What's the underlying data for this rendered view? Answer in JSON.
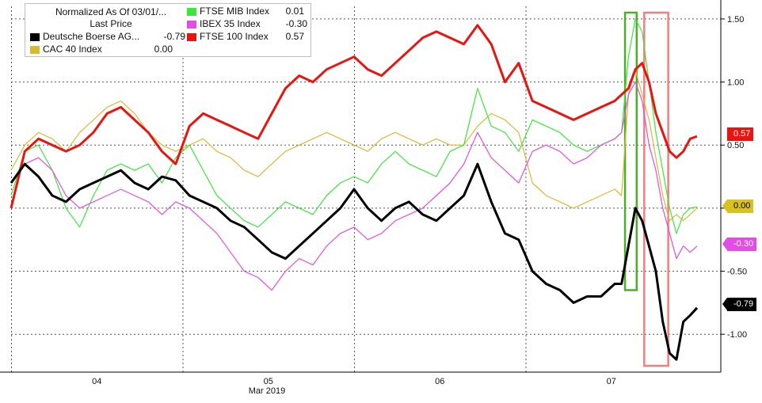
{
  "legend": {
    "header_line1": "Normalized As Of 03/01/...",
    "header_line2": "Last Price",
    "entries": [
      {
        "name": "Deutsche Boerse AG...",
        "value": "-0.79",
        "color": "#000000"
      },
      {
        "name": "CAC 40 Index",
        "value": "0.00",
        "color": "#d9b934"
      },
      {
        "name": "FTSE MIB Index",
        "value": "0.01",
        "color": "#3ce63c"
      },
      {
        "name": "IBEX 35 Index",
        "value": "-0.30",
        "color": "#e34de3"
      },
      {
        "name": "FTSE 100 Index",
        "value": "0.57",
        "color": "#e8140f"
      }
    ]
  },
  "badges": [
    {
      "label": "0.57",
      "color": "#e8140f",
      "text_color": "#ffffff"
    },
    {
      "label": "0.00",
      "color": "#d9c21c",
      "text_color": "#000000"
    },
    {
      "label": "-0.30",
      "color": "#e34de3",
      "text_color": "#ffffff"
    },
    {
      "label": "-0.79",
      "color": "#000000",
      "text_color": "#ffffff"
    }
  ],
  "chart_data": {
    "type": "line",
    "title": "",
    "xlabel": "Mar 2019",
    "ylabel": "",
    "x_tick_labels": [
      "04",
      "05",
      "06",
      "07"
    ],
    "x_domain": [
      0,
      100
    ],
    "x_tick_positions": [
      12.5,
      37.5,
      62.5,
      87.5
    ],
    "y_ticks": [
      1.5,
      1.0,
      0.5,
      0.0,
      -0.5,
      -1.0
    ],
    "y_tick_labels": [
      "1.50",
      "1.00",
      "0.50",
      "0.00",
      "-0.50",
      "-1.00"
    ],
    "ylim": [
      -1.3,
      1.6
    ],
    "grid": true,
    "y_axis_side": "right",
    "legend_position": "top-left",
    "series": [
      {
        "name": "Deutsche Boerse AG...",
        "color": "#000000",
        "stroke_width": 3,
        "last": -0.79,
        "points": [
          [
            0,
            0.2
          ],
          [
            2,
            0.35
          ],
          [
            4,
            0.25
          ],
          [
            6,
            0.1
          ],
          [
            8,
            0.05
          ],
          [
            10,
            0.15
          ],
          [
            12,
            0.2
          ],
          [
            14,
            0.25
          ],
          [
            16,
            0.3
          ],
          [
            18,
            0.2
          ],
          [
            20,
            0.15
          ],
          [
            22,
            0.25
          ],
          [
            24,
            0.22
          ],
          [
            26,
            0.1
          ],
          [
            28,
            0.05
          ],
          [
            30,
            0.0
          ],
          [
            32,
            -0.1
          ],
          [
            34,
            -0.15
          ],
          [
            36,
            -0.25
          ],
          [
            38,
            -0.35
          ],
          [
            40,
            -0.4
          ],
          [
            42,
            -0.3
          ],
          [
            44,
            -0.2
          ],
          [
            46,
            -0.1
          ],
          [
            48,
            0.0
          ],
          [
            50,
            0.15
          ],
          [
            52,
            0.0
          ],
          [
            54,
            -0.1
          ],
          [
            56,
            0.0
          ],
          [
            58,
            0.05
          ],
          [
            60,
            -0.05
          ],
          [
            62,
            -0.1
          ],
          [
            64,
            0.0
          ],
          [
            66,
            0.1
          ],
          [
            68,
            0.35
          ],
          [
            70,
            0.05
          ],
          [
            72,
            -0.2
          ],
          [
            74,
            -0.25
          ],
          [
            76,
            -0.5
          ],
          [
            78,
            -0.6
          ],
          [
            80,
            -0.65
          ],
          [
            82,
            -0.75
          ],
          [
            84,
            -0.7
          ],
          [
            86,
            -0.7
          ],
          [
            88,
            -0.6
          ],
          [
            89,
            -0.6
          ],
          [
            90,
            -0.3
          ],
          [
            91,
            0.0
          ],
          [
            92,
            -0.1
          ],
          [
            93,
            -0.3
          ],
          [
            94,
            -0.5
          ],
          [
            95,
            -0.9
          ],
          [
            96,
            -1.15
          ],
          [
            97,
            -1.2
          ],
          [
            98,
            -0.9
          ],
          [
            99,
            -0.85
          ],
          [
            100,
            -0.79
          ]
        ]
      },
      {
        "name": "CAC 40 Index",
        "color": "#d9b934",
        "stroke_width": 1.2,
        "last": 0.0,
        "points": [
          [
            0,
            0.3
          ],
          [
            2,
            0.5
          ],
          [
            4,
            0.6
          ],
          [
            6,
            0.55
          ],
          [
            8,
            0.45
          ],
          [
            10,
            0.6
          ],
          [
            12,
            0.7
          ],
          [
            14,
            0.8
          ],
          [
            16,
            0.85
          ],
          [
            18,
            0.75
          ],
          [
            20,
            0.6
          ],
          [
            22,
            0.5
          ],
          [
            24,
            0.45
          ],
          [
            26,
            0.5
          ],
          [
            28,
            0.55
          ],
          [
            30,
            0.45
          ],
          [
            32,
            0.4
          ],
          [
            34,
            0.3
          ],
          [
            36,
            0.25
          ],
          [
            38,
            0.35
          ],
          [
            40,
            0.45
          ],
          [
            42,
            0.5
          ],
          [
            44,
            0.55
          ],
          [
            46,
            0.6
          ],
          [
            48,
            0.55
          ],
          [
            50,
            0.5
          ],
          [
            52,
            0.45
          ],
          [
            54,
            0.55
          ],
          [
            56,
            0.6
          ],
          [
            58,
            0.55
          ],
          [
            60,
            0.5
          ],
          [
            62,
            0.55
          ],
          [
            64,
            0.5
          ],
          [
            66,
            0.5
          ],
          [
            68,
            0.65
          ],
          [
            70,
            0.75
          ],
          [
            72,
            0.7
          ],
          [
            74,
            0.6
          ],
          [
            76,
            0.2
          ],
          [
            78,
            0.1
          ],
          [
            80,
            0.05
          ],
          [
            82,
            0.0
          ],
          [
            84,
            0.05
          ],
          [
            86,
            0.1
          ],
          [
            88,
            0.15
          ],
          [
            89,
            0.1
          ],
          [
            90,
            0.9
          ],
          [
            91,
            1.1
          ],
          [
            92,
            0.9
          ],
          [
            93,
            0.7
          ],
          [
            94,
            0.4
          ],
          [
            95,
            0.1
          ],
          [
            96,
            -0.1
          ],
          [
            97,
            -0.05
          ],
          [
            98,
            -0.1
          ],
          [
            99,
            -0.05
          ],
          [
            100,
            0.0
          ]
        ]
      },
      {
        "name": "FTSE MIB Index",
        "color": "#3ce63c",
        "stroke_width": 1.2,
        "last": 0.01,
        "points": [
          [
            0,
            0.1
          ],
          [
            2,
            0.45
          ],
          [
            4,
            0.5
          ],
          [
            6,
            0.3
          ],
          [
            8,
            0.0
          ],
          [
            10,
            -0.15
          ],
          [
            12,
            0.1
          ],
          [
            14,
            0.3
          ],
          [
            16,
            0.35
          ],
          [
            18,
            0.3
          ],
          [
            20,
            0.35
          ],
          [
            22,
            0.2
          ],
          [
            24,
            0.4
          ],
          [
            26,
            0.5
          ],
          [
            28,
            0.3
          ],
          [
            30,
            0.1
          ],
          [
            32,
            0.0
          ],
          [
            34,
            -0.1
          ],
          [
            36,
            -0.15
          ],
          [
            38,
            -0.05
          ],
          [
            40,
            0.05
          ],
          [
            42,
            0.0
          ],
          [
            44,
            -0.05
          ],
          [
            46,
            0.1
          ],
          [
            48,
            0.2
          ],
          [
            50,
            0.25
          ],
          [
            52,
            0.2
          ],
          [
            54,
            0.35
          ],
          [
            56,
            0.45
          ],
          [
            58,
            0.35
          ],
          [
            60,
            0.3
          ],
          [
            62,
            0.25
          ],
          [
            64,
            0.45
          ],
          [
            66,
            0.5
          ],
          [
            68,
            0.95
          ],
          [
            70,
            0.65
          ],
          [
            72,
            0.6
          ],
          [
            74,
            0.45
          ],
          [
            76,
            0.7
          ],
          [
            78,
            0.65
          ],
          [
            80,
            0.6
          ],
          [
            82,
            0.5
          ],
          [
            84,
            0.45
          ],
          [
            86,
            0.5
          ],
          [
            88,
            0.55
          ],
          [
            89,
            0.6
          ],
          [
            90,
            1.2
          ],
          [
            91,
            1.5
          ],
          [
            92,
            1.4
          ],
          [
            93,
            1.0
          ],
          [
            94,
            0.6
          ],
          [
            95,
            0.3
          ],
          [
            96,
            0.0
          ],
          [
            97,
            -0.2
          ],
          [
            98,
            -0.05
          ],
          [
            99,
            0.0
          ],
          [
            100,
            0.01
          ]
        ]
      },
      {
        "name": "IBEX 35 Index",
        "color": "#e34de3",
        "stroke_width": 1.2,
        "last": -0.3,
        "points": [
          [
            0,
            0.2
          ],
          [
            2,
            0.35
          ],
          [
            4,
            0.4
          ],
          [
            6,
            0.3
          ],
          [
            8,
            0.1
          ],
          [
            10,
            0.0
          ],
          [
            12,
            0.05
          ],
          [
            14,
            0.1
          ],
          [
            16,
            0.15
          ],
          [
            18,
            0.1
          ],
          [
            20,
            0.05
          ],
          [
            22,
            -0.05
          ],
          [
            24,
            0.05
          ],
          [
            26,
            0.0
          ],
          [
            28,
            -0.1
          ],
          [
            30,
            -0.2
          ],
          [
            32,
            -0.35
          ],
          [
            34,
            -0.5
          ],
          [
            36,
            -0.55
          ],
          [
            38,
            -0.65
          ],
          [
            40,
            -0.5
          ],
          [
            42,
            -0.4
          ],
          [
            44,
            -0.45
          ],
          [
            46,
            -0.3
          ],
          [
            48,
            -0.2
          ],
          [
            50,
            -0.15
          ],
          [
            52,
            -0.25
          ],
          [
            54,
            -0.2
          ],
          [
            56,
            -0.1
          ],
          [
            58,
            -0.05
          ],
          [
            60,
            0.0
          ],
          [
            62,
            0.1
          ],
          [
            64,
            0.2
          ],
          [
            66,
            0.35
          ],
          [
            68,
            0.6
          ],
          [
            70,
            0.4
          ],
          [
            72,
            0.3
          ],
          [
            74,
            0.2
          ],
          [
            76,
            0.45
          ],
          [
            78,
            0.5
          ],
          [
            80,
            0.45
          ],
          [
            82,
            0.35
          ],
          [
            84,
            0.4
          ],
          [
            86,
            0.5
          ],
          [
            88,
            0.55
          ],
          [
            89,
            0.6
          ],
          [
            90,
            0.9
          ],
          [
            91,
            1.0
          ],
          [
            92,
            0.85
          ],
          [
            93,
            0.5
          ],
          [
            94,
            0.3
          ],
          [
            95,
            0.0
          ],
          [
            96,
            -0.2
          ],
          [
            97,
            -0.4
          ],
          [
            98,
            -0.3
          ],
          [
            99,
            -0.35
          ],
          [
            100,
            -0.3
          ]
        ]
      },
      {
        "name": "FTSE 100 Index",
        "color": "#e8140f",
        "stroke_width": 3,
        "last": 0.57,
        "points": [
          [
            0,
            0.0
          ],
          [
            2,
            0.45
          ],
          [
            4,
            0.55
          ],
          [
            6,
            0.5
          ],
          [
            8,
            0.45
          ],
          [
            10,
            0.5
          ],
          [
            12,
            0.6
          ],
          [
            14,
            0.75
          ],
          [
            16,
            0.8
          ],
          [
            18,
            0.7
          ],
          [
            20,
            0.6
          ],
          [
            22,
            0.45
          ],
          [
            24,
            0.35
          ],
          [
            26,
            0.65
          ],
          [
            28,
            0.75
          ],
          [
            30,
            0.7
          ],
          [
            32,
            0.65
          ],
          [
            34,
            0.6
          ],
          [
            36,
            0.55
          ],
          [
            38,
            0.75
          ],
          [
            40,
            0.95
          ],
          [
            42,
            1.05
          ],
          [
            44,
            1.0
          ],
          [
            46,
            1.1
          ],
          [
            48,
            1.15
          ],
          [
            50,
            1.2
          ],
          [
            52,
            1.1
          ],
          [
            54,
            1.05
          ],
          [
            56,
            1.15
          ],
          [
            58,
            1.25
          ],
          [
            60,
            1.35
          ],
          [
            62,
            1.4
          ],
          [
            64,
            1.35
          ],
          [
            66,
            1.3
          ],
          [
            68,
            1.45
          ],
          [
            70,
            1.3
          ],
          [
            72,
            1.0
          ],
          [
            74,
            1.15
          ],
          [
            76,
            0.85
          ],
          [
            78,
            0.8
          ],
          [
            80,
            0.75
          ],
          [
            82,
            0.7
          ],
          [
            84,
            0.75
          ],
          [
            86,
            0.8
          ],
          [
            88,
            0.85
          ],
          [
            89,
            0.9
          ],
          [
            90,
            0.95
          ],
          [
            91,
            1.1
          ],
          [
            92,
            1.15
          ],
          [
            93,
            1.0
          ],
          [
            94,
            0.75
          ],
          [
            95,
            0.6
          ],
          [
            96,
            0.45
          ],
          [
            97,
            0.4
          ],
          [
            98,
            0.45
          ],
          [
            99,
            0.55
          ],
          [
            100,
            0.57
          ]
        ]
      }
    ]
  },
  "highlights": [
    {
      "name": "green-highlight",
      "color": "#4caf2a",
      "x_range": [
        89.5,
        91.2
      ],
      "y_range": [
        -0.65,
        1.55
      ]
    },
    {
      "name": "red-highlight",
      "color": "#f08080",
      "x_range": [
        92.3,
        95.8
      ],
      "y_range": [
        -1.25,
        1.55
      ]
    }
  ]
}
